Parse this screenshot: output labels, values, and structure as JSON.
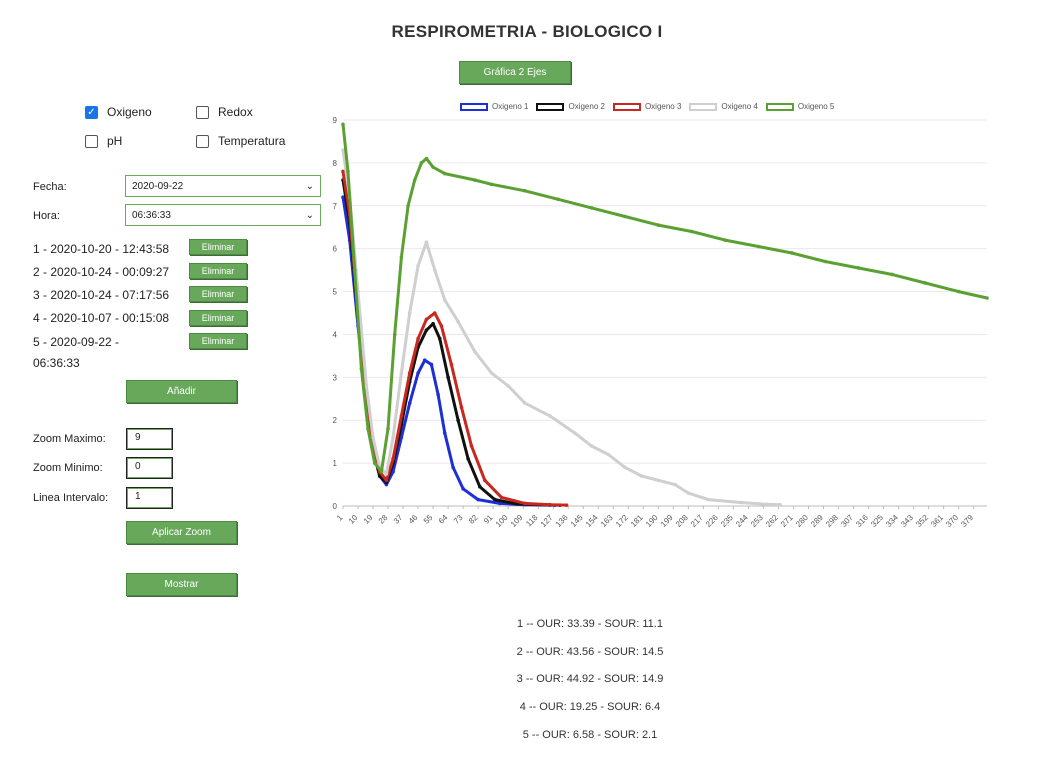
{
  "page": {
    "title": "RESPIROMETRIA - BIOLOGICO I"
  },
  "top_button": {
    "label": "Gráfica 2 Ejes"
  },
  "checkboxes": [
    {
      "label": "Oxigeno",
      "checked": true
    },
    {
      "label": "Redox",
      "checked": false
    },
    {
      "label": "pH",
      "checked": false
    },
    {
      "label": "Temperatura",
      "checked": false
    }
  ],
  "form": {
    "fecha_label": "Fecha:",
    "fecha_value": "2020-09-22",
    "hora_label": "Hora:",
    "hora_value": "06:36:33"
  },
  "records": [
    {
      "text": "1 - 2020-10-20 - 12:43:58",
      "button": "Eliminar"
    },
    {
      "text": "2 - 2020-10-24 - 00:09:27",
      "button": "Eliminar"
    },
    {
      "text": "3 - 2020-10-24 - 07:17:56",
      "button": "Eliminar"
    },
    {
      "text": "4 - 2020-10-07 - 00:15:08",
      "button": "Eliminar"
    },
    {
      "text": "5 - 2020-09-22 - 06:36:33",
      "button": "Eliminar"
    }
  ],
  "add_button": "Añadir",
  "zoom": {
    "max_label": "Zoom Maximo:",
    "max_value": "9",
    "min_label": "Zoom Minimo:",
    "min_value": "0",
    "interval_label": "Linea Intervalo:",
    "interval_value": "1",
    "apply_button": "Aplicar Zoom"
  },
  "show_button": "Mostrar",
  "results": [
    "1 -- OUR: 33.39 - SOUR: 11.1",
    "2 -- OUR: 43.56 - SOUR: 14.5",
    "3 -- OUR: 44.92 - SOUR: 14.9",
    "4 -- OUR: 19.25 - SOUR: 6.4",
    "5 -- OUR: 6.58 - SOUR: 2.1"
  ],
  "chart_data": {
    "type": "line",
    "title": "",
    "xlabel": "",
    "ylabel": "",
    "ylim": [
      0,
      9
    ],
    "xlim": [
      1,
      387
    ],
    "yticks": [
      0,
      1,
      2,
      3,
      4,
      5,
      6,
      7,
      8,
      9
    ],
    "xticks": [
      1,
      10,
      19,
      28,
      37,
      46,
      55,
      64,
      73,
      82,
      91,
      100,
      109,
      118,
      127,
      136,
      145,
      154,
      163,
      172,
      181,
      190,
      199,
      208,
      217,
      226,
      235,
      244,
      253,
      262,
      271,
      280,
      289,
      298,
      307,
      316,
      325,
      334,
      343,
      352,
      361,
      370,
      379
    ],
    "legend_position": "top",
    "grid": true,
    "series": [
      {
        "name": "Oxigeno 1",
        "color": "#1f2fd6",
        "points": [
          [
            1,
            7.2
          ],
          [
            5,
            6.2
          ],
          [
            10,
            4.2
          ],
          [
            15,
            2.3
          ],
          [
            19,
            1.3
          ],
          [
            23,
            0.7
          ],
          [
            27,
            0.5
          ],
          [
            31,
            0.8
          ],
          [
            36,
            1.6
          ],
          [
            41,
            2.4
          ],
          [
            46,
            3.1
          ],
          [
            50,
            3.4
          ],
          [
            54,
            3.3
          ],
          [
            58,
            2.6
          ],
          [
            62,
            1.7
          ],
          [
            67,
            0.9
          ],
          [
            73,
            0.4
          ],
          [
            82,
            0.15
          ],
          [
            95,
            0.06
          ],
          [
            110,
            0.03
          ],
          [
            125,
            0.02
          ],
          [
            128,
            0.02
          ]
        ]
      },
      {
        "name": "Oxigeno 2",
        "color": "#111111",
        "points": [
          [
            1,
            7.6
          ],
          [
            5,
            6.6
          ],
          [
            10,
            4.4
          ],
          [
            15,
            2.4
          ],
          [
            19,
            1.3
          ],
          [
            23,
            0.7
          ],
          [
            27,
            0.55
          ],
          [
            31,
            1.0
          ],
          [
            36,
            1.9
          ],
          [
            41,
            2.9
          ],
          [
            46,
            3.7
          ],
          [
            51,
            4.1
          ],
          [
            55,
            4.25
          ],
          [
            59,
            3.9
          ],
          [
            64,
            3.0
          ],
          [
            70,
            2.0
          ],
          [
            76,
            1.1
          ],
          [
            83,
            0.45
          ],
          [
            92,
            0.15
          ],
          [
            105,
            0.05
          ],
          [
            120,
            0.03
          ],
          [
            131,
            0.02
          ]
        ]
      },
      {
        "name": "Oxigeno 3",
        "color": "#c8281e",
        "points": [
          [
            1,
            7.8
          ],
          [
            5,
            6.8
          ],
          [
            10,
            4.5
          ],
          [
            15,
            2.5
          ],
          [
            19,
            1.4
          ],
          [
            23,
            0.8
          ],
          [
            27,
            0.6
          ],
          [
            31,
            1.1
          ],
          [
            36,
            2.1
          ],
          [
            41,
            3.1
          ],
          [
            46,
            3.9
          ],
          [
            51,
            4.35
          ],
          [
            56,
            4.5
          ],
          [
            60,
            4.2
          ],
          [
            66,
            3.3
          ],
          [
            72,
            2.3
          ],
          [
            78,
            1.4
          ],
          [
            86,
            0.6
          ],
          [
            96,
            0.2
          ],
          [
            110,
            0.06
          ],
          [
            125,
            0.03
          ],
          [
            135,
            0.02
          ]
        ]
      },
      {
        "name": "Oxigeno 4",
        "color": "#cfcfcf",
        "points": [
          [
            1,
            8.3
          ],
          [
            5,
            7.2
          ],
          [
            10,
            5.0
          ],
          [
            15,
            2.8
          ],
          [
            19,
            1.6
          ],
          [
            23,
            0.9
          ],
          [
            27,
            0.75
          ],
          [
            31,
            1.6
          ],
          [
            36,
            3.1
          ],
          [
            41,
            4.5
          ],
          [
            46,
            5.6
          ],
          [
            51,
            6.15
          ],
          [
            56,
            5.5
          ],
          [
            62,
            4.8
          ],
          [
            70,
            4.3
          ],
          [
            80,
            3.6
          ],
          [
            90,
            3.1
          ],
          [
            100,
            2.8
          ],
          [
            110,
            2.4
          ],
          [
            125,
            2.1
          ],
          [
            140,
            1.7
          ],
          [
            150,
            1.4
          ],
          [
            160,
            1.2
          ],
          [
            170,
            0.9
          ],
          [
            180,
            0.7
          ],
          [
            190,
            0.6
          ],
          [
            200,
            0.5
          ],
          [
            208,
            0.3
          ],
          [
            220,
            0.15
          ],
          [
            240,
            0.08
          ],
          [
            255,
            0.04
          ],
          [
            263,
            0.03
          ]
        ]
      },
      {
        "name": "Oxigeno 5",
        "color": "#5aa132",
        "points": [
          [
            1,
            8.9
          ],
          [
            4,
            7.8
          ],
          [
            8,
            5.5
          ],
          [
            12,
            3.2
          ],
          [
            16,
            1.8
          ],
          [
            20,
            1.0
          ],
          [
            24,
            0.8
          ],
          [
            28,
            1.8
          ],
          [
            32,
            4.0
          ],
          [
            36,
            5.8
          ],
          [
            40,
            7.0
          ],
          [
            44,
            7.6
          ],
          [
            48,
            8.0
          ],
          [
            51,
            8.1
          ],
          [
            55,
            7.9
          ],
          [
            62,
            7.75
          ],
          [
            80,
            7.6
          ],
          [
            90,
            7.5
          ],
          [
            110,
            7.35
          ],
          [
            130,
            7.15
          ],
          [
            150,
            6.95
          ],
          [
            170,
            6.75
          ],
          [
            190,
            6.55
          ],
          [
            210,
            6.4
          ],
          [
            230,
            6.2
          ],
          [
            250,
            6.05
          ],
          [
            270,
            5.9
          ],
          [
            290,
            5.7
          ],
          [
            310,
            5.55
          ],
          [
            330,
            5.4
          ],
          [
            350,
            5.2
          ],
          [
            370,
            5.0
          ],
          [
            387,
            4.85
          ]
        ]
      }
    ]
  }
}
